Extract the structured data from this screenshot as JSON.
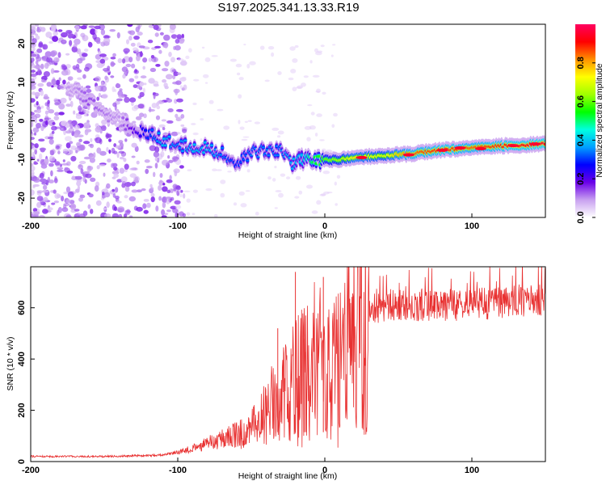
{
  "title": "S197.2025.341.13.33.R19",
  "chart_data": [
    {
      "type": "heatmap",
      "name": "spectrogram",
      "title": "S197.2025.341.13.33.R19",
      "xlabel": "Height of straight line (km)",
      "ylabel": "Frequency (Hz)",
      "xlim": [
        -200,
        150
      ],
      "ylim": [
        -25,
        25
      ],
      "xticks": [
        -200,
        -100,
        0,
        100
      ],
      "yticks": [
        -20,
        -10,
        0,
        10,
        20
      ],
      "xtick_labels": [
        "-200",
        "-100",
        "0",
        "100"
      ],
      "ytick_labels": [
        "-20",
        "-10",
        "0",
        "10",
        "20"
      ],
      "ridge": {
        "x": [
          -170,
          -160,
          -150,
          -140,
          -130,
          -120,
          -110,
          -100,
          -90,
          -80,
          -70,
          -60,
          -50,
          -40,
          -30,
          -22,
          -15,
          -10,
          -5,
          0,
          10,
          20,
          40,
          60,
          80,
          100,
          120,
          150
        ],
        "y": [
          8,
          5,
          2,
          0,
          -2,
          -3,
          -5,
          -6,
          -7,
          -7,
          -8,
          -12,
          -8,
          -8,
          -8,
          -11,
          -10,
          -10,
          -10,
          -10,
          -10,
          -9.5,
          -9,
          -8.5,
          -7.5,
          -7,
          -6.5,
          -6
        ],
        "amplitude": [
          0.1,
          0.15,
          0.12,
          0.1,
          0.2,
          0.3,
          0.4,
          0.35,
          0.4,
          0.4,
          0.35,
          0.3,
          0.35,
          0.35,
          0.35,
          0.4,
          0.4,
          0.5,
          0.55,
          0.6,
          0.65,
          0.75,
          0.7,
          0.85,
          0.9,
          0.85,
          0.9,
          0.95
        ]
      }
    },
    {
      "type": "line",
      "name": "snr",
      "xlabel": "Height of straight line (km)",
      "ylabel": "SNR (10 * v/v)",
      "xlim": [
        -200,
        150
      ],
      "ylim": [
        0,
        760
      ],
      "xticks": [
        -200,
        -100,
        0,
        100
      ],
      "yticks": [
        0,
        200,
        400,
        600
      ],
      "xtick_labels": [
        "-200",
        "-100",
        "0",
        "100"
      ],
      "ytick_labels": [
        "0",
        "200",
        "400",
        "600"
      ],
      "color": "#e83030",
      "trend": {
        "x": [
          -200,
          -150,
          -110,
          -90,
          -70,
          -55,
          -45,
          -35,
          -25,
          -15,
          -8,
          -3,
          0,
          5,
          10,
          15,
          20,
          25,
          30,
          40,
          60,
          80,
          100,
          120,
          150
        ],
        "y": [
          20,
          20,
          25,
          50,
          90,
          110,
          150,
          230,
          280,
          330,
          380,
          380,
          300,
          360,
          430,
          480,
          520,
          570,
          590,
          610,
          610,
          610,
          615,
          620,
          630
        ]
      },
      "spikes": [
        {
          "x": -20,
          "y": 740
        },
        {
          "x": -1,
          "y": 720
        },
        {
          "x": -32,
          "y": 520
        },
        {
          "x": -13,
          "y": 570
        },
        {
          "x": -14,
          "y": 480
        }
      ]
    }
  ],
  "colorbar": {
    "label": "Normalized spectral amplitude",
    "range": [
      0,
      1
    ],
    "ticks": [
      0.0,
      0.2,
      0.4,
      0.6,
      0.8
    ],
    "tick_labels": [
      "0.0",
      "0.2",
      "0.4",
      "0.6",
      "0.8"
    ],
    "colors": [
      "#ffffff",
      "#c8a0f0",
      "#6a00e8",
      "#0000ff",
      "#00a0ff",
      "#00ffe0",
      "#00ff00",
      "#a0ff00",
      "#ffff00",
      "#ff9000",
      "#ff0000",
      "#ff0060"
    ]
  }
}
